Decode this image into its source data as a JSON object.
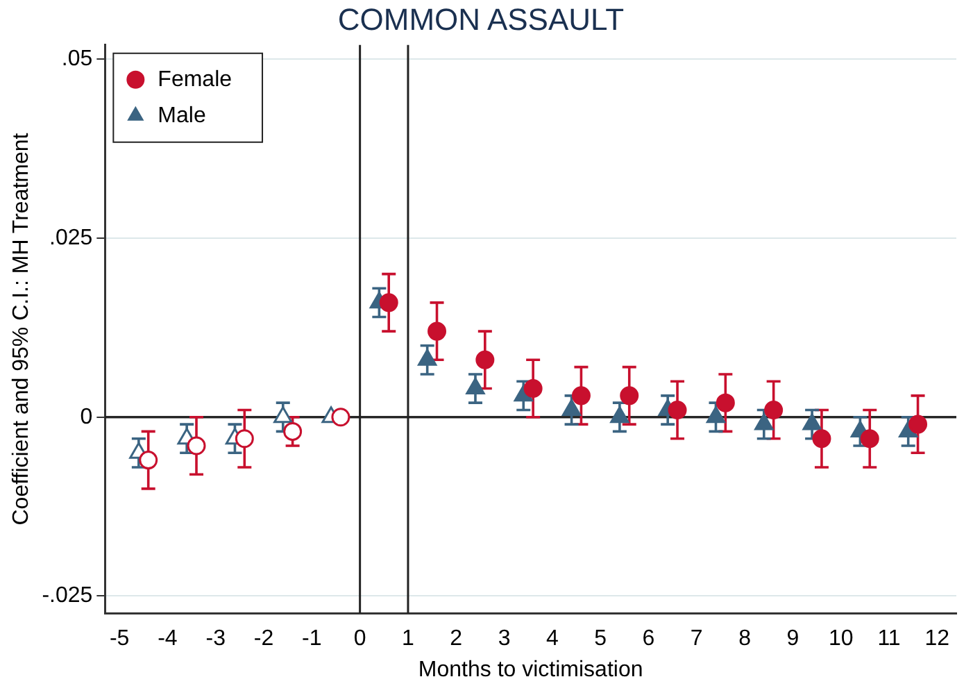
{
  "chart_data": {
    "type": "scatter",
    "title": "COMMON ASSAULT",
    "xlabel": "Months to victimisation",
    "ylabel": "Coefficient and 95% C.I.: MH Treatment",
    "xlim": [
      -5.3,
      12.4
    ],
    "xticks": [
      -5,
      -4,
      -3,
      -2,
      -1,
      0,
      1,
      2,
      3,
      4,
      5,
      6,
      7,
      8,
      9,
      10,
      11,
      12
    ],
    "ylim": [
      -0.0274,
      0.052
    ],
    "yticks": [
      {
        "value": -0.025,
        "label": "-.025"
      },
      0,
      {
        "value": 0.025,
        "label": ".025"
      },
      {
        "value": 0.05,
        "label": ".05"
      }
    ],
    "grid": "y",
    "legend": "top left",
    "ref_lines": [
      {
        "axis": "x",
        "value": 0,
        "color": "#222222"
      },
      {
        "axis": "x",
        "value": 1,
        "color": "#222222"
      },
      {
        "axis": "y",
        "value": 0,
        "color": "#222222"
      }
    ],
    "series": [
      {
        "name": "Female",
        "color": "#c8102e",
        "marker": "circle",
        "x": [
          -4.4,
          -3.4,
          -2.4,
          -1.4,
          -0.4,
          0.6,
          1.6,
          2.6,
          3.6,
          4.6,
          5.6,
          6.6,
          7.6,
          8.6,
          9.6,
          10.6,
          11.6
        ],
        "values": [
          -0.006,
          -0.004,
          -0.003,
          -0.002,
          0,
          0.016,
          0.012,
          0.008,
          0.004,
          0.003,
          0.003,
          0.001,
          0.002,
          0.001,
          -0.003,
          -0.003,
          -0.001
        ],
        "errors": [
          [
            -0.01,
            -0.002
          ],
          [
            -0.008,
            0
          ],
          [
            -0.007,
            0.001
          ],
          [
            -0.004,
            0
          ],
          null,
          [
            0.012,
            0.02
          ],
          [
            0.008,
            0.016
          ],
          [
            0.004,
            0.012
          ],
          [
            0,
            0.008
          ],
          [
            -0.001,
            0.007
          ],
          [
            -0.001,
            0.007
          ],
          [
            -0.003,
            0.005
          ],
          [
            -0.002,
            0.006
          ],
          [
            -0.003,
            0.005
          ],
          [
            -0.007,
            0.001
          ],
          [
            -0.007,
            0.001
          ],
          [
            -0.005,
            0.003
          ]
        ]
      },
      {
        "name": "Male",
        "color": "#3b6482",
        "marker": "triangle",
        "x": [
          -4.6,
          -3.6,
          -2.6,
          -1.6,
          -0.6,
          0.4,
          1.4,
          2.4,
          3.4,
          4.4,
          5.4,
          6.4,
          7.4,
          8.4,
          9.4,
          10.4,
          11.4
        ],
        "values": [
          -0.005,
          -0.003,
          -0.003,
          0,
          0,
          0.016,
          0.008,
          0.004,
          0.003,
          0.001,
          0,
          0.001,
          0,
          -0.001,
          -0.001,
          -0.002,
          -0.002
        ],
        "errors": [
          [
            -0.007,
            -0.003
          ],
          [
            -0.005,
            -0.001
          ],
          [
            -0.005,
            -0.001
          ],
          [
            -0.002,
            0.002
          ],
          null,
          [
            0.014,
            0.018
          ],
          [
            0.006,
            0.01
          ],
          [
            0.002,
            0.006
          ],
          [
            0.001,
            0.005
          ],
          [
            -0.001,
            0.003
          ],
          [
            -0.002,
            0.002
          ],
          [
            -0.001,
            0.003
          ],
          [
            -0.002,
            0.002
          ],
          [
            -0.003,
            0.001
          ],
          [
            -0.003,
            0.001
          ],
          [
            -0.004,
            0
          ],
          [
            -0.004,
            0
          ]
        ]
      }
    ]
  }
}
